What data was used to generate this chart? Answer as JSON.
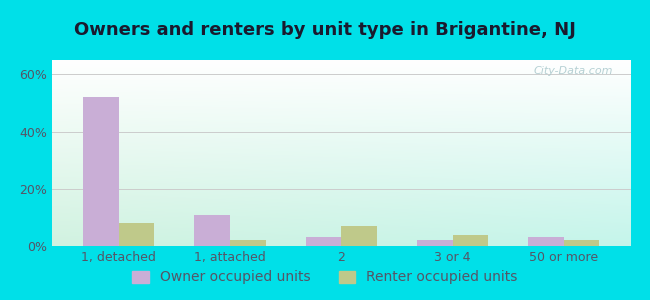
{
  "title": "Owners and renters by unit type in Brigantine, NJ",
  "categories": [
    "1, detached",
    "1, attached",
    "2",
    "3 or 4",
    "50 or more"
  ],
  "owner_values": [
    52,
    11,
    3,
    2,
    3
  ],
  "renter_values": [
    8,
    2,
    7,
    4,
    2
  ],
  "owner_color": "#c9aed6",
  "renter_color": "#bfc98a",
  "yticks": [
    0,
    20,
    40,
    60
  ],
  "ytick_labels": [
    "0%",
    "20%",
    "40%",
    "60%"
  ],
  "ylim": [
    0,
    65
  ],
  "background_outer": "#00e0e8",
  "background_inner_bottom": "#ffffff",
  "background_inner_top": "#d4edda",
  "grid_color": "#cccccc",
  "title_fontsize": 13,
  "tick_fontsize": 9,
  "legend_fontsize": 10,
  "watermark": "City-Data.com",
  "title_color": "#1a1a2e",
  "tick_color": "#555566"
}
